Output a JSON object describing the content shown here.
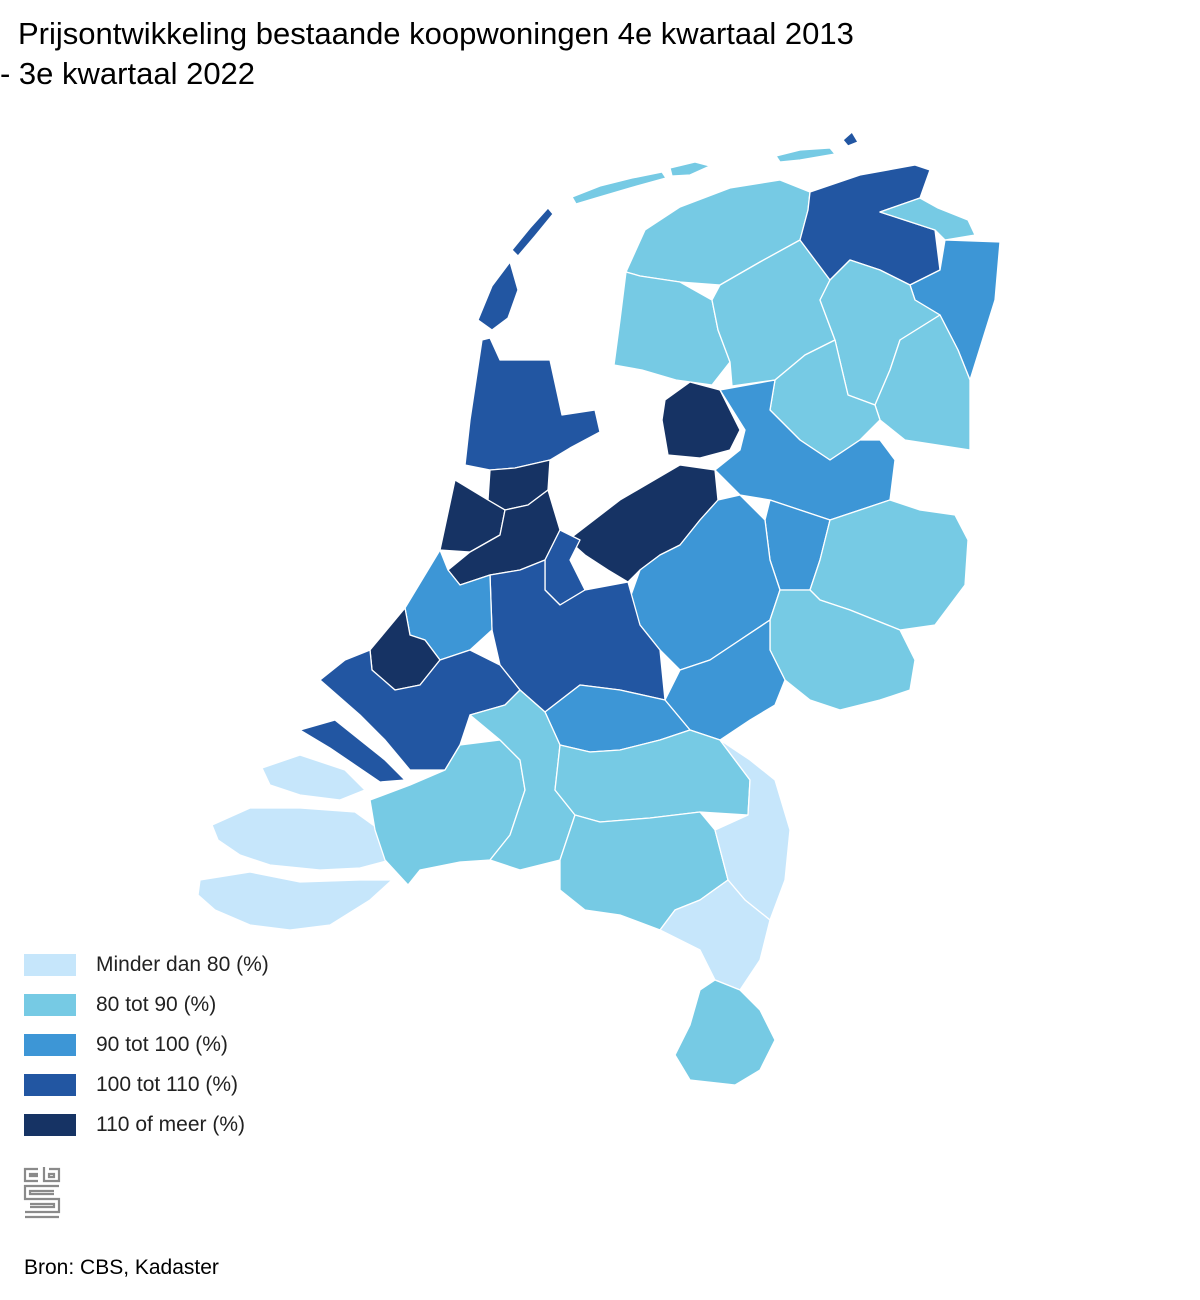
{
  "title_line1": "Prijsontwikkeling bestaande koopwoningen 4e kwartaal 2013",
  "title_line2": "- 3e kwartaal 2022",
  "legend": [
    {
      "label": "Minder dan 80 (%)",
      "color": "#c6e6fb"
    },
    {
      "label": "80 tot 90 (%)",
      "color": "#76cae4"
    },
    {
      "label": "90 tot 100 (%)",
      "color": "#3d96d6"
    },
    {
      "label": "100 tot 110 (%)",
      "color": "#2256a2"
    },
    {
      "label": "110 of meer (%)",
      "color": "#163364"
    }
  ],
  "regions_by_class": {
    "minder_dan_80": [
      "Zeeland (Walcheren, Schouwen-Duiveland, Zeeuws-Vlaanderen)",
      "Noord-Limburg",
      "Midden-Limburg"
    ],
    "80_tot_90": [
      "Waddeneilanden",
      "Friesland",
      "Drenthe",
      "Noordoost-Groningen",
      "Achterhoek / Oost-Gelderland",
      "Twente",
      "West-Brabant",
      "Midden-Brabant",
      "Noordoost-Brabant",
      "Zuidoost-Brabant",
      "Zuid-Limburg"
    ],
    "90_tot_100": [
      "Oost-Groningen",
      "Noord-Overijssel",
      "Salland",
      "Veluwe",
      "Arnhem/Nijmegen",
      "Rivierenland",
      "Den Haag-omgeving",
      "Rijnmond-Noord"
    ],
    "100_tot_110": [
      "Noord-Groningen",
      "Texel",
      "Noord-Holland Noord",
      "Zuid-Holland Zuid",
      "Utrecht",
      "Amersfoort",
      "Delft / Westland",
      "Gooi en Vechtstreek"
    ],
    "110_of_meer": [
      "Flevoland (Noordoostpolder)",
      "Flevoland (Flevopolder)",
      "Groot-Amsterdam",
      "Zaanstreek",
      "Haarlem",
      "Den Haag"
    ]
  },
  "source": "Bron: CBS, Kadaster",
  "logo_text": "cbs"
}
